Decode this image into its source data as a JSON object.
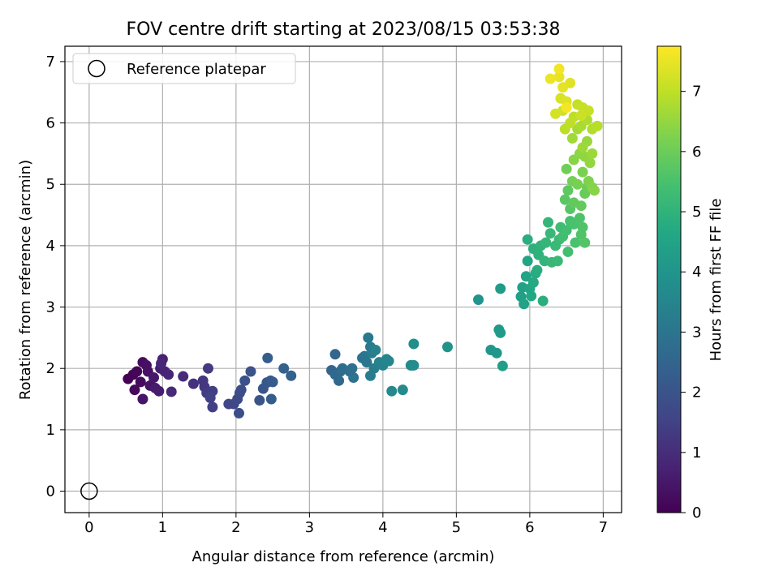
{
  "chart_data": {
    "type": "scatter",
    "title": "FOV centre drift starting at 2023/08/15 03:53:38",
    "xlabel": "Angular distance from reference (arcmin)",
    "ylabel": "Rotation from reference (arcmin)",
    "xlim": [
      -0.33,
      7.25
    ],
    "ylim": [
      -0.35,
      7.25
    ],
    "xticks": [
      0,
      1,
      2,
      3,
      4,
      5,
      6,
      7
    ],
    "yticks": [
      0,
      1,
      2,
      3,
      4,
      5,
      6,
      7
    ],
    "grid": true,
    "legend": {
      "placement": "top-left",
      "entries": [
        "Reference platepar"
      ]
    },
    "reference_point": {
      "x": 0,
      "y": 0,
      "label": "Reference platepar"
    },
    "colorbar": {
      "label": "Hours from first FF file",
      "range": [
        0,
        7.75
      ],
      "ticks": [
        0,
        1,
        2,
        3,
        4,
        5,
        6,
        7
      ],
      "colormap": "viridis"
    },
    "points": [
      {
        "x": 0.53,
        "y": 1.83,
        "c": 0.0
      },
      {
        "x": 0.6,
        "y": 1.9,
        "c": 0.05
      },
      {
        "x": 0.65,
        "y": 1.95,
        "c": 0.1
      },
      {
        "x": 0.62,
        "y": 1.65,
        "c": 0.15
      },
      {
        "x": 0.7,
        "y": 1.78,
        "c": 0.2
      },
      {
        "x": 0.73,
        "y": 2.1,
        "c": 0.25
      },
      {
        "x": 0.78,
        "y": 2.05,
        "c": 0.3
      },
      {
        "x": 0.8,
        "y": 1.95,
        "c": 0.35
      },
      {
        "x": 0.83,
        "y": 1.72,
        "c": 0.4
      },
      {
        "x": 0.73,
        "y": 1.5,
        "c": 0.45
      },
      {
        "x": 0.88,
        "y": 1.85,
        "c": 0.5
      },
      {
        "x": 0.9,
        "y": 1.68,
        "c": 0.55
      },
      {
        "x": 0.95,
        "y": 1.63,
        "c": 0.6
      },
      {
        "x": 0.97,
        "y": 2.0,
        "c": 0.65
      },
      {
        "x": 1.0,
        "y": 2.15,
        "c": 0.7
      },
      {
        "x": 1.03,
        "y": 1.95,
        "c": 0.75
      },
      {
        "x": 1.08,
        "y": 1.9,
        "c": 0.8
      },
      {
        "x": 0.98,
        "y": 2.08,
        "c": 0.85
      },
      {
        "x": 1.12,
        "y": 1.62,
        "c": 0.9
      },
      {
        "x": 1.28,
        "y": 1.87,
        "c": 1.0
      },
      {
        "x": 1.42,
        "y": 1.75,
        "c": 1.1
      },
      {
        "x": 1.55,
        "y": 1.8,
        "c": 1.2
      },
      {
        "x": 1.57,
        "y": 1.7,
        "c": 1.25
      },
      {
        "x": 1.62,
        "y": 2.0,
        "c": 1.3
      },
      {
        "x": 1.6,
        "y": 1.6,
        "c": 1.35
      },
      {
        "x": 1.68,
        "y": 1.63,
        "c": 1.4
      },
      {
        "x": 1.68,
        "y": 1.37,
        "c": 1.45
      },
      {
        "x": 1.65,
        "y": 1.52,
        "c": 1.5
      },
      {
        "x": 1.9,
        "y": 1.42,
        "c": 1.6
      },
      {
        "x": 1.97,
        "y": 1.42,
        "c": 1.65
      },
      {
        "x": 2.02,
        "y": 1.5,
        "c": 1.7
      },
      {
        "x": 2.05,
        "y": 1.6,
        "c": 1.75
      },
      {
        "x": 2.07,
        "y": 1.65,
        "c": 1.8
      },
      {
        "x": 2.04,
        "y": 1.27,
        "c": 1.85
      },
      {
        "x": 2.12,
        "y": 1.8,
        "c": 1.9
      },
      {
        "x": 2.2,
        "y": 1.95,
        "c": 1.95
      },
      {
        "x": 2.32,
        "y": 1.48,
        "c": 2.0
      },
      {
        "x": 2.37,
        "y": 1.67,
        "c": 2.05
      },
      {
        "x": 2.42,
        "y": 1.77,
        "c": 2.1
      },
      {
        "x": 2.47,
        "y": 1.8,
        "c": 2.15
      },
      {
        "x": 2.5,
        "y": 1.78,
        "c": 2.2
      },
      {
        "x": 2.48,
        "y": 1.5,
        "c": 2.25
      },
      {
        "x": 2.43,
        "y": 2.17,
        "c": 2.3
      },
      {
        "x": 2.65,
        "y": 2.0,
        "c": 2.35
      },
      {
        "x": 2.75,
        "y": 1.88,
        "c": 2.4
      },
      {
        "x": 3.3,
        "y": 1.97,
        "c": 2.5
      },
      {
        "x": 3.35,
        "y": 2.23,
        "c": 2.55
      },
      {
        "x": 3.35,
        "y": 1.9,
        "c": 2.6
      },
      {
        "x": 3.4,
        "y": 1.8,
        "c": 2.65
      },
      {
        "x": 3.42,
        "y": 1.95,
        "c": 2.7
      },
      {
        "x": 3.45,
        "y": 2.0,
        "c": 2.75
      },
      {
        "x": 3.55,
        "y": 1.95,
        "c": 2.8
      },
      {
        "x": 3.58,
        "y": 2.0,
        "c": 2.85
      },
      {
        "x": 3.6,
        "y": 1.85,
        "c": 2.9
      },
      {
        "x": 3.72,
        "y": 2.17,
        "c": 2.95
      },
      {
        "x": 3.75,
        "y": 2.2,
        "c": 3.0
      },
      {
        "x": 3.78,
        "y": 2.1,
        "c": 3.05
      },
      {
        "x": 3.8,
        "y": 2.5,
        "c": 3.1
      },
      {
        "x": 3.83,
        "y": 2.35,
        "c": 3.15
      },
      {
        "x": 3.85,
        "y": 2.25,
        "c": 3.2
      },
      {
        "x": 3.83,
        "y": 1.88,
        "c": 3.25
      },
      {
        "x": 3.88,
        "y": 2.0,
        "c": 3.3
      },
      {
        "x": 3.9,
        "y": 2.3,
        "c": 3.35
      },
      {
        "x": 3.95,
        "y": 2.1,
        "c": 3.4
      },
      {
        "x": 4.0,
        "y": 2.05,
        "c": 3.45
      },
      {
        "x": 4.05,
        "y": 2.15,
        "c": 3.5
      },
      {
        "x": 4.08,
        "y": 2.12,
        "c": 3.55
      },
      {
        "x": 4.12,
        "y": 1.63,
        "c": 3.6
      },
      {
        "x": 4.27,
        "y": 1.65,
        "c": 3.65
      },
      {
        "x": 4.38,
        "y": 2.05,
        "c": 3.7
      },
      {
        "x": 4.42,
        "y": 2.05,
        "c": 3.75
      },
      {
        "x": 4.42,
        "y": 2.4,
        "c": 3.8
      },
      {
        "x": 4.88,
        "y": 2.35,
        "c": 3.9
      },
      {
        "x": 5.3,
        "y": 3.12,
        "c": 4.0
      },
      {
        "x": 5.47,
        "y": 2.3,
        "c": 4.05
      },
      {
        "x": 5.55,
        "y": 2.25,
        "c": 4.1
      },
      {
        "x": 5.58,
        "y": 2.63,
        "c": 4.15
      },
      {
        "x": 5.6,
        "y": 2.58,
        "c": 4.2
      },
      {
        "x": 5.6,
        "y": 3.3,
        "c": 4.25
      },
      {
        "x": 5.63,
        "y": 2.04,
        "c": 4.3
      },
      {
        "x": 5.88,
        "y": 3.17,
        "c": 4.35
      },
      {
        "x": 5.9,
        "y": 3.32,
        "c": 4.4
      },
      {
        "x": 5.92,
        "y": 3.05,
        "c": 4.45
      },
      {
        "x": 5.95,
        "y": 3.5,
        "c": 4.5
      },
      {
        "x": 5.97,
        "y": 3.75,
        "c": 4.55
      },
      {
        "x": 6.0,
        "y": 3.3,
        "c": 4.6
      },
      {
        "x": 6.02,
        "y": 3.18,
        "c": 4.65
      },
      {
        "x": 6.05,
        "y": 3.4,
        "c": 4.7
      },
      {
        "x": 6.08,
        "y": 3.55,
        "c": 4.75
      },
      {
        "x": 6.1,
        "y": 3.6,
        "c": 4.8
      },
      {
        "x": 6.18,
        "y": 3.1,
        "c": 4.85
      },
      {
        "x": 5.97,
        "y": 4.1,
        "c": 4.85
      },
      {
        "x": 6.05,
        "y": 3.95,
        "c": 4.9
      },
      {
        "x": 6.12,
        "y": 3.85,
        "c": 4.95
      },
      {
        "x": 6.15,
        "y": 4.0,
        "c": 5.0
      },
      {
        "x": 6.2,
        "y": 3.75,
        "c": 5.05
      },
      {
        "x": 6.22,
        "y": 4.05,
        "c": 5.1
      },
      {
        "x": 6.25,
        "y": 4.38,
        "c": 5.1
      },
      {
        "x": 6.28,
        "y": 4.2,
        "c": 5.15
      },
      {
        "x": 6.3,
        "y": 3.73,
        "c": 5.15
      },
      {
        "x": 6.35,
        "y": 4.0,
        "c": 5.2
      },
      {
        "x": 6.38,
        "y": 3.75,
        "c": 5.2
      },
      {
        "x": 6.4,
        "y": 4.1,
        "c": 5.25
      },
      {
        "x": 6.42,
        "y": 4.3,
        "c": 5.3
      },
      {
        "x": 6.45,
        "y": 4.15,
        "c": 5.35
      },
      {
        "x": 6.5,
        "y": 4.25,
        "c": 5.4
      },
      {
        "x": 6.52,
        "y": 3.9,
        "c": 5.4
      },
      {
        "x": 6.55,
        "y": 4.4,
        "c": 5.45
      },
      {
        "x": 6.6,
        "y": 4.35,
        "c": 5.5
      },
      {
        "x": 6.62,
        "y": 4.05,
        "c": 5.5
      },
      {
        "x": 6.68,
        "y": 4.45,
        "c": 5.55
      },
      {
        "x": 6.7,
        "y": 4.18,
        "c": 5.6
      },
      {
        "x": 6.72,
        "y": 4.3,
        "c": 5.6
      },
      {
        "x": 6.75,
        "y": 4.05,
        "c": 5.65
      },
      {
        "x": 6.55,
        "y": 4.6,
        "c": 5.7
      },
      {
        "x": 6.48,
        "y": 4.75,
        "c": 5.75
      },
      {
        "x": 6.52,
        "y": 4.9,
        "c": 5.8
      },
      {
        "x": 6.6,
        "y": 4.7,
        "c": 5.85
      },
      {
        "x": 6.7,
        "y": 4.65,
        "c": 5.9
      },
      {
        "x": 6.75,
        "y": 4.85,
        "c": 5.95
      },
      {
        "x": 6.78,
        "y": 4.95,
        "c": 6.0
      },
      {
        "x": 6.5,
        "y": 5.25,
        "c": 6.05
      },
      {
        "x": 6.58,
        "y": 5.05,
        "c": 6.1
      },
      {
        "x": 6.65,
        "y": 5.0,
        "c": 6.15
      },
      {
        "x": 6.72,
        "y": 5.2,
        "c": 6.2
      },
      {
        "x": 6.8,
        "y": 5.05,
        "c": 6.25
      },
      {
        "x": 6.85,
        "y": 4.95,
        "c": 6.3
      },
      {
        "x": 6.88,
        "y": 4.9,
        "c": 6.35
      },
      {
        "x": 6.6,
        "y": 5.4,
        "c": 6.35
      },
      {
        "x": 6.68,
        "y": 5.5,
        "c": 6.4
      },
      {
        "x": 6.75,
        "y": 5.45,
        "c": 6.45
      },
      {
        "x": 6.82,
        "y": 5.35,
        "c": 6.5
      },
      {
        "x": 6.78,
        "y": 5.7,
        "c": 6.55
      },
      {
        "x": 6.72,
        "y": 5.6,
        "c": 6.6
      },
      {
        "x": 6.85,
        "y": 5.5,
        "c": 6.6
      },
      {
        "x": 6.58,
        "y": 5.75,
        "c": 6.65
      },
      {
        "x": 6.65,
        "y": 5.9,
        "c": 6.7
      },
      {
        "x": 6.7,
        "y": 5.95,
        "c": 6.75
      },
      {
        "x": 6.78,
        "y": 6.05,
        "c": 6.8
      },
      {
        "x": 6.85,
        "y": 5.9,
        "c": 6.85
      },
      {
        "x": 6.92,
        "y": 5.95,
        "c": 6.9
      },
      {
        "x": 6.48,
        "y": 5.9,
        "c": 6.95
      },
      {
        "x": 6.55,
        "y": 6.0,
        "c": 7.0
      },
      {
        "x": 6.6,
        "y": 6.1,
        "c": 7.0
      },
      {
        "x": 6.65,
        "y": 6.3,
        "c": 7.05
      },
      {
        "x": 6.72,
        "y": 6.25,
        "c": 7.1
      },
      {
        "x": 6.8,
        "y": 6.2,
        "c": 7.1
      },
      {
        "x": 6.7,
        "y": 6.12,
        "c": 7.15
      },
      {
        "x": 6.45,
        "y": 6.2,
        "c": 7.2
      },
      {
        "x": 6.35,
        "y": 6.15,
        "c": 7.25
      },
      {
        "x": 6.42,
        "y": 6.4,
        "c": 7.3
      },
      {
        "x": 6.5,
        "y": 6.35,
        "c": 7.35
      },
      {
        "x": 6.55,
        "y": 6.65,
        "c": 7.4
      },
      {
        "x": 6.45,
        "y": 6.58,
        "c": 7.45
      },
      {
        "x": 6.4,
        "y": 6.75,
        "c": 7.5
      },
      {
        "x": 6.28,
        "y": 6.72,
        "c": 7.55
      },
      {
        "x": 6.4,
        "y": 6.88,
        "c": 7.6
      },
      {
        "x": 6.5,
        "y": 6.25,
        "c": 7.65
      }
    ]
  }
}
